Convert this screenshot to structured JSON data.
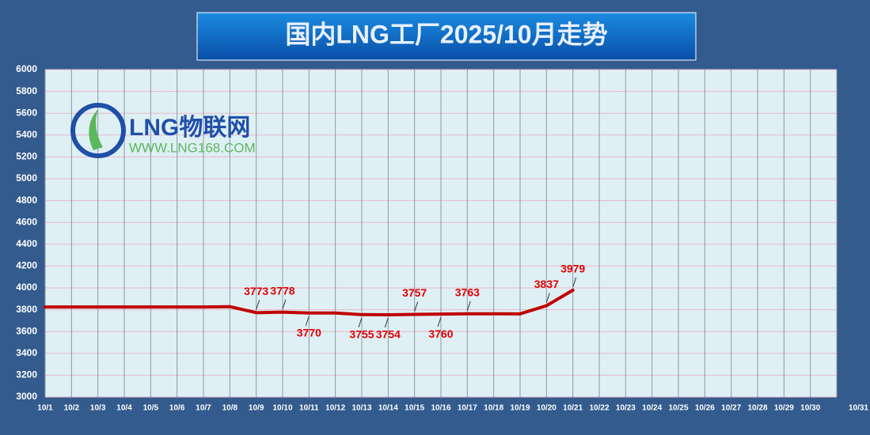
{
  "chart_data": {
    "type": "line",
    "title": "国内LNG工厂2025/10月走势",
    "logo": {
      "name": "LNG物联网",
      "url": "WWW.LNG168.COM"
    },
    "categories": [
      "10/1",
      "10/2",
      "10/3",
      "10/4",
      "10/5",
      "10/6",
      "10/7",
      "10/8",
      "10/9",
      "10/10",
      "10/11",
      "10/12",
      "10/13",
      "10/14",
      "10/15",
      "10/16",
      "10/17",
      "10/18",
      "10/19",
      "10/20",
      "10/21",
      "10/22",
      "10/23",
      "10/24",
      "10/25",
      "10/26",
      "10/27",
      "10/28",
      "10/29",
      "10/30",
      "10/31"
    ],
    "series": [
      {
        "name": "国内LNG工厂",
        "color": "#c00000",
        "values": [
          3825,
          3825,
          3825,
          3825,
          3825,
          3825,
          3825,
          3828,
          3773,
          3778,
          3770,
          3770,
          3755,
          3754,
          3757,
          3760,
          3763,
          3763,
          3762,
          3837,
          3979,
          null,
          null,
          null,
          null,
          null,
          null,
          null,
          null,
          null,
          null
        ],
        "value_labels": [
          null,
          null,
          null,
          null,
          null,
          null,
          null,
          null,
          "3773",
          "3778",
          "3770",
          null,
          "3755",
          "3754",
          "3757",
          "3760",
          "3763",
          null,
          null,
          "3837",
          "3979",
          null,
          null,
          null,
          null,
          null,
          null,
          null,
          null,
          null,
          null
        ]
      }
    ],
    "ylim": [
      3000,
      6000
    ],
    "yticks": [
      3000,
      3200,
      3400,
      3600,
      3800,
      4000,
      4200,
      4400,
      4600,
      4800,
      5000,
      5200,
      5400,
      5600,
      5800,
      6000
    ],
    "grid": true
  }
}
